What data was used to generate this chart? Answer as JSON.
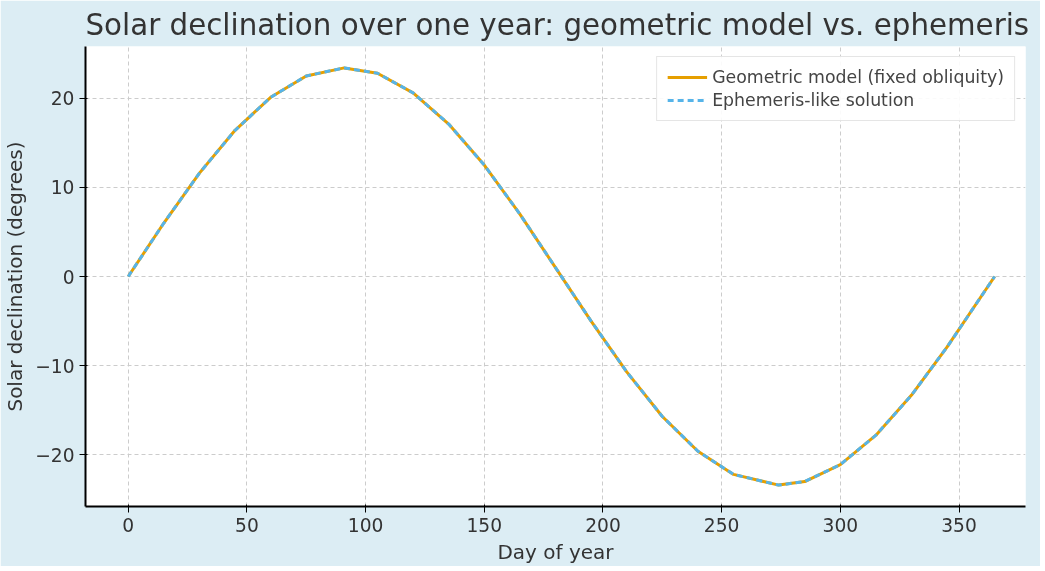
{
  "chart_data": {
    "type": "line",
    "title": "Solar declination over one year: geometric model vs. ephemeris",
    "xlabel": "Day of year",
    "ylabel": "Solar declination (degrees)",
    "x": [
      0,
      15,
      30,
      45,
      60,
      75,
      91,
      105,
      120,
      135,
      150,
      165,
      180,
      195,
      210,
      225,
      240,
      255,
      274,
      285,
      300,
      315,
      330,
      345,
      365
    ],
    "series": [
      {
        "name": "Geometric model (fixed obliquity)",
        "color": "#e69f00",
        "line_style": "solid",
        "values": [
          0,
          6.0,
          11.6,
          16.4,
          20.1,
          22.5,
          23.4,
          22.8,
          20.6,
          17.1,
          12.5,
          7.0,
          1.0,
          -5.0,
          -10.7,
          -15.7,
          -19.6,
          -22.2,
          -23.4,
          -23.0,
          -21.1,
          -17.8,
          -13.3,
          -7.9,
          0
        ]
      },
      {
        "name": "Ephemeris-like solution",
        "color": "#56b4e9",
        "line_style": "dashed",
        "values": [
          0,
          6.0,
          11.6,
          16.4,
          20.1,
          22.5,
          23.4,
          22.8,
          20.6,
          17.1,
          12.5,
          7.0,
          1.0,
          -5.0,
          -10.7,
          -15.7,
          -19.6,
          -22.2,
          -23.4,
          -23.0,
          -21.1,
          -17.8,
          -13.3,
          -7.9,
          0
        ]
      }
    ],
    "xlim": [
      -18,
      378
    ],
    "ylim": [
      -25.8,
      25.8
    ],
    "xticks": [
      0,
      50,
      100,
      150,
      200,
      250,
      300,
      350
    ],
    "yticks": [
      {
        "value": -20,
        "label": "−20"
      },
      {
        "value": -10,
        "label": "−10"
      },
      0,
      10,
      20
    ],
    "grid": true,
    "legend": "top right",
    "marker": "none"
  }
}
